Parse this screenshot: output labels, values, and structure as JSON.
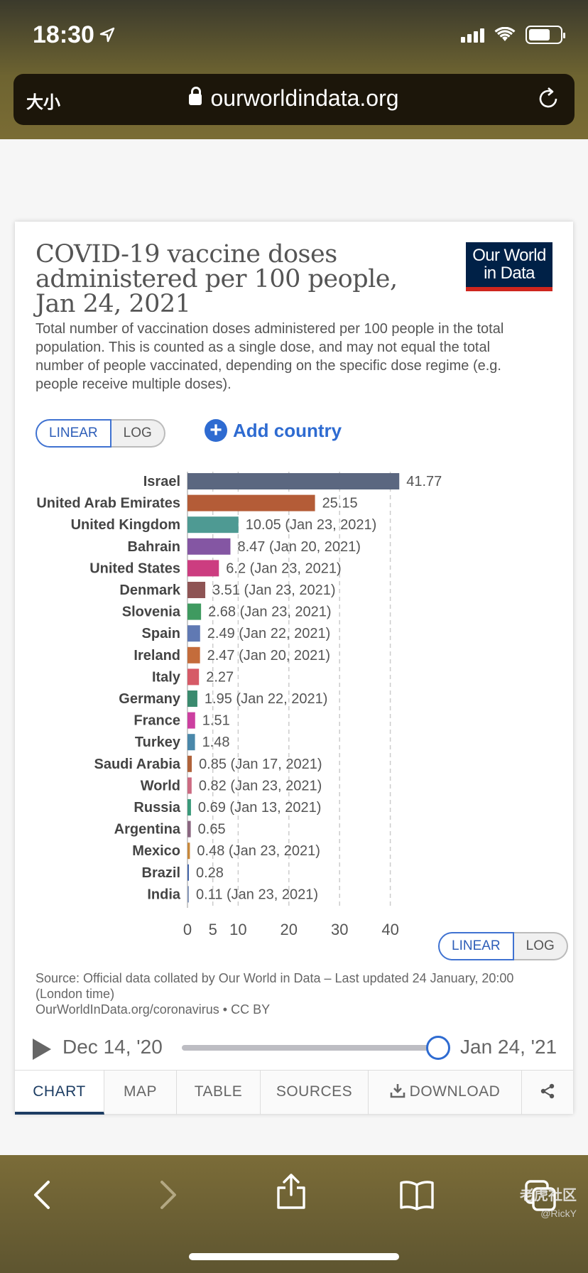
{
  "status_bar": {
    "time": "18:30"
  },
  "browser": {
    "text_size_button": "大小",
    "url": "ourworldindata.org"
  },
  "chart_card": {
    "title": "COVID-19 vaccine doses administered per 100 people, Jan 24, 2021",
    "logo_text_line1": "Our World",
    "logo_text_line2": "in Data",
    "subtitle": "Total number of vaccination doses administered per 100 people in the total population. This is counted as a single dose, and may not equal the total number of people vaccinated, depending on the specific dose regime (e.g. people receive multiple doses).",
    "scale_toggle": {
      "linear": "LINEAR",
      "log": "LOG"
    },
    "add_country": "Add country",
    "source_line1": "Source: Official data collated by Our World in Data – Last updated 24 January, 20:00 (London time)",
    "source_line2": "OurWorldInData.org/coronavirus • CC BY",
    "timeline": {
      "start": "Dec 14, '20",
      "end": "Jan 24, '21",
      "position": 1.0
    },
    "tabs": [
      "CHART",
      "MAP",
      "TABLE",
      "SOURCES",
      "DOWNLOAD"
    ]
  },
  "chart_data": {
    "type": "bar",
    "orientation": "horizontal",
    "xlim": [
      0,
      42
    ],
    "xticks": [
      0,
      5,
      10,
      20,
      30,
      40
    ],
    "grid": true,
    "categories": [
      "Israel",
      "United Arab Emirates",
      "United Kingdom",
      "Bahrain",
      "United States",
      "Denmark",
      "Slovenia",
      "Spain",
      "Ireland",
      "Italy",
      "Germany",
      "France",
      "Turkey",
      "Saudi Arabia",
      "World",
      "Russia",
      "Argentina",
      "Mexico",
      "Brazil",
      "India"
    ],
    "values": [
      41.77,
      25.15,
      10.05,
      8.47,
      6.2,
      3.51,
      2.68,
      2.49,
      2.47,
      2.27,
      1.95,
      1.51,
      1.48,
      0.85,
      0.82,
      0.69,
      0.65,
      0.48,
      0.28,
      0.11
    ],
    "labels": [
      "41.77",
      "25.15",
      "10.05 (Jan 23, 2021)",
      "8.47 (Jan 20, 2021)",
      "6.2 (Jan 23, 2021)",
      "3.51 (Jan 23, 2021)",
      "2.68 (Jan 23, 2021)",
      "2.49 (Jan 22, 2021)",
      "2.47 (Jan 20, 2021)",
      "2.27",
      "1.95 (Jan 22, 2021)",
      "1.51",
      "1.48",
      "0.85 (Jan 17, 2021)",
      "0.82 (Jan 23, 2021)",
      "0.69 (Jan 13, 2021)",
      "0.65",
      "0.48 (Jan 23, 2021)",
      "0.28",
      "0.11 (Jan 23, 2021)"
    ],
    "colors": [
      "#5b6780",
      "#b45c37",
      "#4e9a93",
      "#8456a3",
      "#cc3d80",
      "#8e5454",
      "#3f9a60",
      "#6079b3",
      "#c46c3b",
      "#d65a67",
      "#3a8a6e",
      "#cc3fa0",
      "#4a88aa",
      "#b0623a",
      "#cc6b82",
      "#3a9a7a",
      "#8a6680",
      "#c8883a",
      "#4466aa",
      "#8899bb"
    ]
  },
  "watermark": {
    "text": "老虎社区",
    "handle": "@RickY"
  }
}
